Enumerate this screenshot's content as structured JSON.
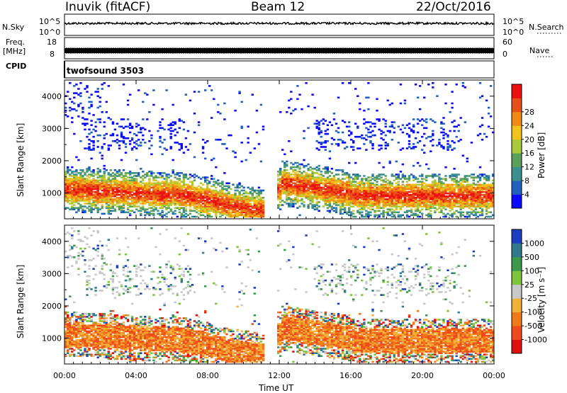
{
  "header": {
    "station": "Inuvik (fitACF)",
    "beam": "Beam 12",
    "date": "22/Oct/2016"
  },
  "strip_labels": {
    "nsky": "N.Sky",
    "nsearch": "N.Search",
    "freq": "Freq.",
    "freq_unit": "[MHz]",
    "nave": "Nave",
    "cpid": "CPID",
    "cpid_value": "twofsound 3503",
    "nsky_ticks": [
      "10^5",
      "10^0"
    ],
    "nsearch_ticks": [
      "10^5",
      "10^0"
    ],
    "freq_ticks": [
      "18",
      "8"
    ],
    "nave_ticks": [
      "60",
      "0"
    ]
  },
  "chart_data": [
    {
      "type": "heatmap",
      "panel": "power",
      "xlabel": "",
      "ylabel": "Slant Range [km]",
      "x_ticks": [
        "00:00",
        "04:00",
        "08:00",
        "12:00",
        "16:00",
        "20:00",
        "00:00"
      ],
      "y_ticks": [
        1000,
        2000,
        3000,
        4000
      ],
      "ylim": [
        200,
        4500
      ],
      "colorbar": {
        "label": "Power [dB]",
        "ticks": [
          "4",
          "8",
          "12",
          "16",
          "20",
          "24",
          "28"
        ],
        "colors": [
          "#0a0aff",
          "#1f5fbe",
          "#3a8f8f",
          "#5aa05a",
          "#a9c93a",
          "#f2c21a",
          "#f08a14",
          "#e8501a",
          "#ee1010"
        ]
      }
    },
    {
      "type": "heatmap",
      "panel": "velocity",
      "xlabel": "Time UT",
      "ylabel": "Slant Range [km]",
      "x_ticks": [
        "00:00",
        "04:00",
        "08:00",
        "12:00",
        "16:00",
        "20:00",
        "00:00"
      ],
      "y_ticks": [
        1000,
        2000,
        3000,
        4000
      ],
      "ylim": [
        200,
        4500
      ],
      "colorbar": {
        "label": "Velocity [m s⁻¹]",
        "ticks": [
          "1000",
          "500",
          "100",
          "25",
          "-25",
          "-100",
          "-500",
          "-1000"
        ],
        "colors": [
          "#1c3fbf",
          "#2f7a8c",
          "#3a9a4a",
          "#7cc43a",
          "#c8c8c8",
          "#f2b03a",
          "#f07a1a",
          "#ee4a1a",
          "#e01010"
        ]
      }
    }
  ],
  "colors": {
    "nsky_trace": "#000000",
    "freq_trace": "#000000",
    "ground_scatter": "#c0c0c0"
  }
}
